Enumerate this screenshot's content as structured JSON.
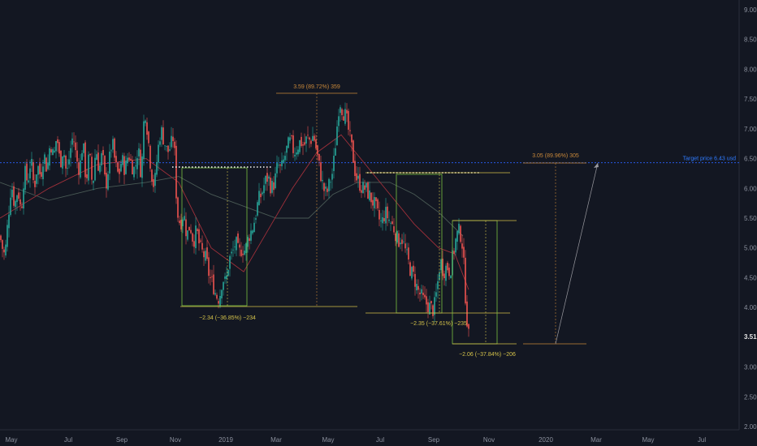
{
  "chart_data": {
    "type": "candlestick",
    "colors": {
      "background": "#131722",
      "up": "#26a69a",
      "down": "#ef5350",
      "ma_short": "#a0303a",
      "ma_long": "#4a5a55",
      "target_line": "#2962ff",
      "measure_box": "#7cc142",
      "measure_label": "#d4c24a",
      "up_label": "#c8883a",
      "dotted_line": "#ffffff",
      "axis_text": "#8a8f9c",
      "last_price_bg": "#131722"
    },
    "y_axis": {
      "range": [
        2.0,
        9.0
      ],
      "ticks": [
        "9.00",
        "8.50",
        "8.00",
        "7.50",
        "7.00",
        "6.50",
        "6.00",
        "5.50",
        "5.00",
        "4.50",
        "4.00",
        "3.50",
        "3.00",
        "2.50",
        "2.00"
      ]
    },
    "x_axis": {
      "ticks": [
        "May",
        "Jul",
        "Sep",
        "Nov",
        "2019",
        "Mar",
        "May",
        "Jul",
        "Sep",
        "Nov",
        "2020",
        "Mar",
        "May",
        "Jul"
      ]
    },
    "last_price": "3.51",
    "target_price_label": "Target price 6.43 usd",
    "target_price_value": 6.43,
    "annotations": [
      {
        "text": "−2.34 (−36.85%) −234",
        "type": "down"
      },
      {
        "text": "3.59 (89.72%) 359",
        "type": "up"
      },
      {
        "text": "−2.35 (−37.61%) −235",
        "type": "down"
      },
      {
        "text": "−2.06 (−37.84%) −206",
        "type": "down"
      },
      {
        "text": "3.05 (89.96%) 305",
        "type": "up"
      }
    ],
    "price_path": [
      [
        0,
        5.2
      ],
      [
        3,
        5.0
      ],
      [
        6,
        4.85
      ],
      [
        10,
        5.5
      ],
      [
        14,
        6.1
      ],
      [
        18,
        5.7
      ],
      [
        22,
        6.0
      ],
      [
        26,
        5.6
      ],
      [
        30,
        6.3
      ],
      [
        34,
        6.1
      ],
      [
        38,
        6.5
      ],
      [
        42,
        6.0
      ],
      [
        46,
        6.4
      ],
      [
        50,
        6.2
      ],
      [
        54,
        6.6
      ],
      [
        58,
        6.3
      ],
      [
        62,
        6.8
      ],
      [
        66,
        6.5
      ],
      [
        70,
        6.9
      ],
      [
        74,
        6.4
      ],
      [
        78,
        6.7
      ],
      [
        82,
        6.2
      ],
      [
        86,
        6.6
      ],
      [
        90,
        6.9
      ],
      [
        94,
        6.5
      ],
      [
        98,
        6.3
      ],
      [
        102,
        6.8
      ],
      [
        106,
        6.1
      ],
      [
        110,
        6.6
      ],
      [
        114,
        6.0
      ],
      [
        118,
        6.7
      ],
      [
        122,
        6.3
      ],
      [
        126,
        6.6
      ],
      [
        130,
        6.0
      ],
      [
        134,
        6.4
      ],
      [
        138,
        6.8
      ],
      [
        142,
        6.4
      ],
      [
        146,
        6.2
      ],
      [
        150,
        6.5
      ],
      [
        154,
        6.3
      ],
      [
        158,
        6.6
      ],
      [
        162,
        6.4
      ],
      [
        166,
        6.3
      ],
      [
        170,
        6.7
      ],
      [
        174,
        6.2
      ],
      [
        178,
        7.4
      ],
      [
        182,
        6.9
      ],
      [
        186,
        6.3
      ],
      [
        190,
        6.0
      ],
      [
        194,
        6.6
      ],
      [
        198,
        7.0
      ],
      [
        202,
        6.8
      ],
      [
        206,
        6.6
      ],
      [
        210,
        6.7
      ],
      [
        214,
        6.9
      ],
      [
        218,
        5.6
      ],
      [
        222,
        5.4
      ],
      [
        226,
        5.6
      ],
      [
        230,
        5.2
      ],
      [
        234,
        5.4
      ],
      [
        238,
        5.1
      ],
      [
        242,
        5.3
      ],
      [
        246,
        5.0
      ],
      [
        250,
        4.9
      ],
      [
        254,
        4.8
      ],
      [
        258,
        4.5
      ],
      [
        262,
        4.4
      ],
      [
        266,
        4.2
      ],
      [
        270,
        4.15
      ],
      [
        274,
        4.5
      ],
      [
        278,
        4.4
      ],
      [
        282,
        4.8
      ],
      [
        286,
        4.9
      ],
      [
        290,
        5.1
      ],
      [
        294,
        4.9
      ],
      [
        298,
        5.0
      ],
      [
        302,
        4.95
      ],
      [
        306,
        5.2
      ],
      [
        310,
        5.3
      ],
      [
        314,
        5.5
      ],
      [
        318,
        5.8
      ],
      [
        322,
        5.9
      ],
      [
        326,
        6.1
      ],
      [
        330,
        6.2
      ],
      [
        334,
        6.0
      ],
      [
        338,
        6.1
      ],
      [
        342,
        6.4
      ],
      [
        346,
        6.3
      ],
      [
        350,
        6.5
      ],
      [
        354,
        6.7
      ],
      [
        358,
        6.8
      ],
      [
        362,
        6.6
      ],
      [
        366,
        6.7
      ],
      [
        370,
        6.8
      ],
      [
        374,
        6.7
      ],
      [
        378,
        6.85
      ],
      [
        382,
        6.8
      ],
      [
        386,
        6.9
      ],
      [
        390,
        6.6
      ],
      [
        394,
        6.3
      ],
      [
        398,
        6.0
      ],
      [
        402,
        5.9
      ],
      [
        406,
        6.1
      ],
      [
        410,
        6.3
      ],
      [
        414,
        6.9
      ],
      [
        418,
        7.5
      ],
      [
        422,
        7.3
      ],
      [
        426,
        7.2
      ],
      [
        430,
        6.9
      ],
      [
        434,
        6.6
      ],
      [
        438,
        6.2
      ],
      [
        442,
        6.1
      ],
      [
        446,
        6.0
      ],
      [
        450,
        6.0
      ],
      [
        454,
        5.9
      ],
      [
        458,
        5.8
      ],
      [
        462,
        5.7
      ],
      [
        466,
        5.5
      ],
      [
        470,
        5.4
      ],
      [
        474,
        5.6
      ],
      [
        478,
        5.5
      ],
      [
        482,
        5.4
      ],
      [
        486,
        5.3
      ],
      [
        490,
        5.1
      ],
      [
        494,
        5.2
      ],
      [
        498,
        5.0
      ],
      [
        502,
        4.8
      ],
      [
        506,
        4.6
      ],
      [
        510,
        4.5
      ],
      [
        514,
        4.3
      ],
      [
        518,
        4.2
      ],
      [
        522,
        4.1
      ],
      [
        526,
        4.05
      ],
      [
        530,
        4.0
      ],
      [
        534,
        3.95
      ],
      [
        538,
        4.3
      ],
      [
        542,
        4.8
      ],
      [
        546,
        4.6
      ],
      [
        550,
        4.7
      ],
      [
        554,
        4.6
      ],
      [
        558,
        4.9
      ],
      [
        562,
        5.2
      ],
      [
        566,
        5.3
      ],
      [
        570,
        5.0
      ],
      [
        572,
        4.4
      ],
      [
        574,
        4.0
      ],
      [
        576,
        3.6
      ],
      [
        577,
        3.51
      ]
    ],
    "ma_short_path": [
      [
        0,
        5.5
      ],
      [
        60,
        6.0
      ],
      [
        120,
        6.4
      ],
      [
        180,
        6.5
      ],
      [
        220,
        6.1
      ],
      [
        260,
        5.0
      ],
      [
        300,
        4.6
      ],
      [
        330,
        5.3
      ],
      [
        360,
        6.0
      ],
      [
        390,
        6.6
      ],
      [
        420,
        6.9
      ],
      [
        450,
        6.4
      ],
      [
        480,
        5.9
      ],
      [
        510,
        5.4
      ],
      [
        540,
        5.0
      ],
      [
        560,
        4.9
      ],
      [
        577,
        4.3
      ]
    ],
    "ma_long_path": [
      [
        0,
        6.1
      ],
      [
        60,
        5.8
      ],
      [
        120,
        6.0
      ],
      [
        180,
        6.1
      ],
      [
        220,
        6.2
      ],
      [
        260,
        5.9
      ],
      [
        300,
        5.7
      ],
      [
        340,
        5.5
      ],
      [
        380,
        5.5
      ],
      [
        410,
        5.9
      ],
      [
        440,
        6.1
      ],
      [
        480,
        6.1
      ],
      [
        510,
        5.9
      ],
      [
        540,
        5.6
      ],
      [
        570,
        5.2
      ]
    ]
  }
}
